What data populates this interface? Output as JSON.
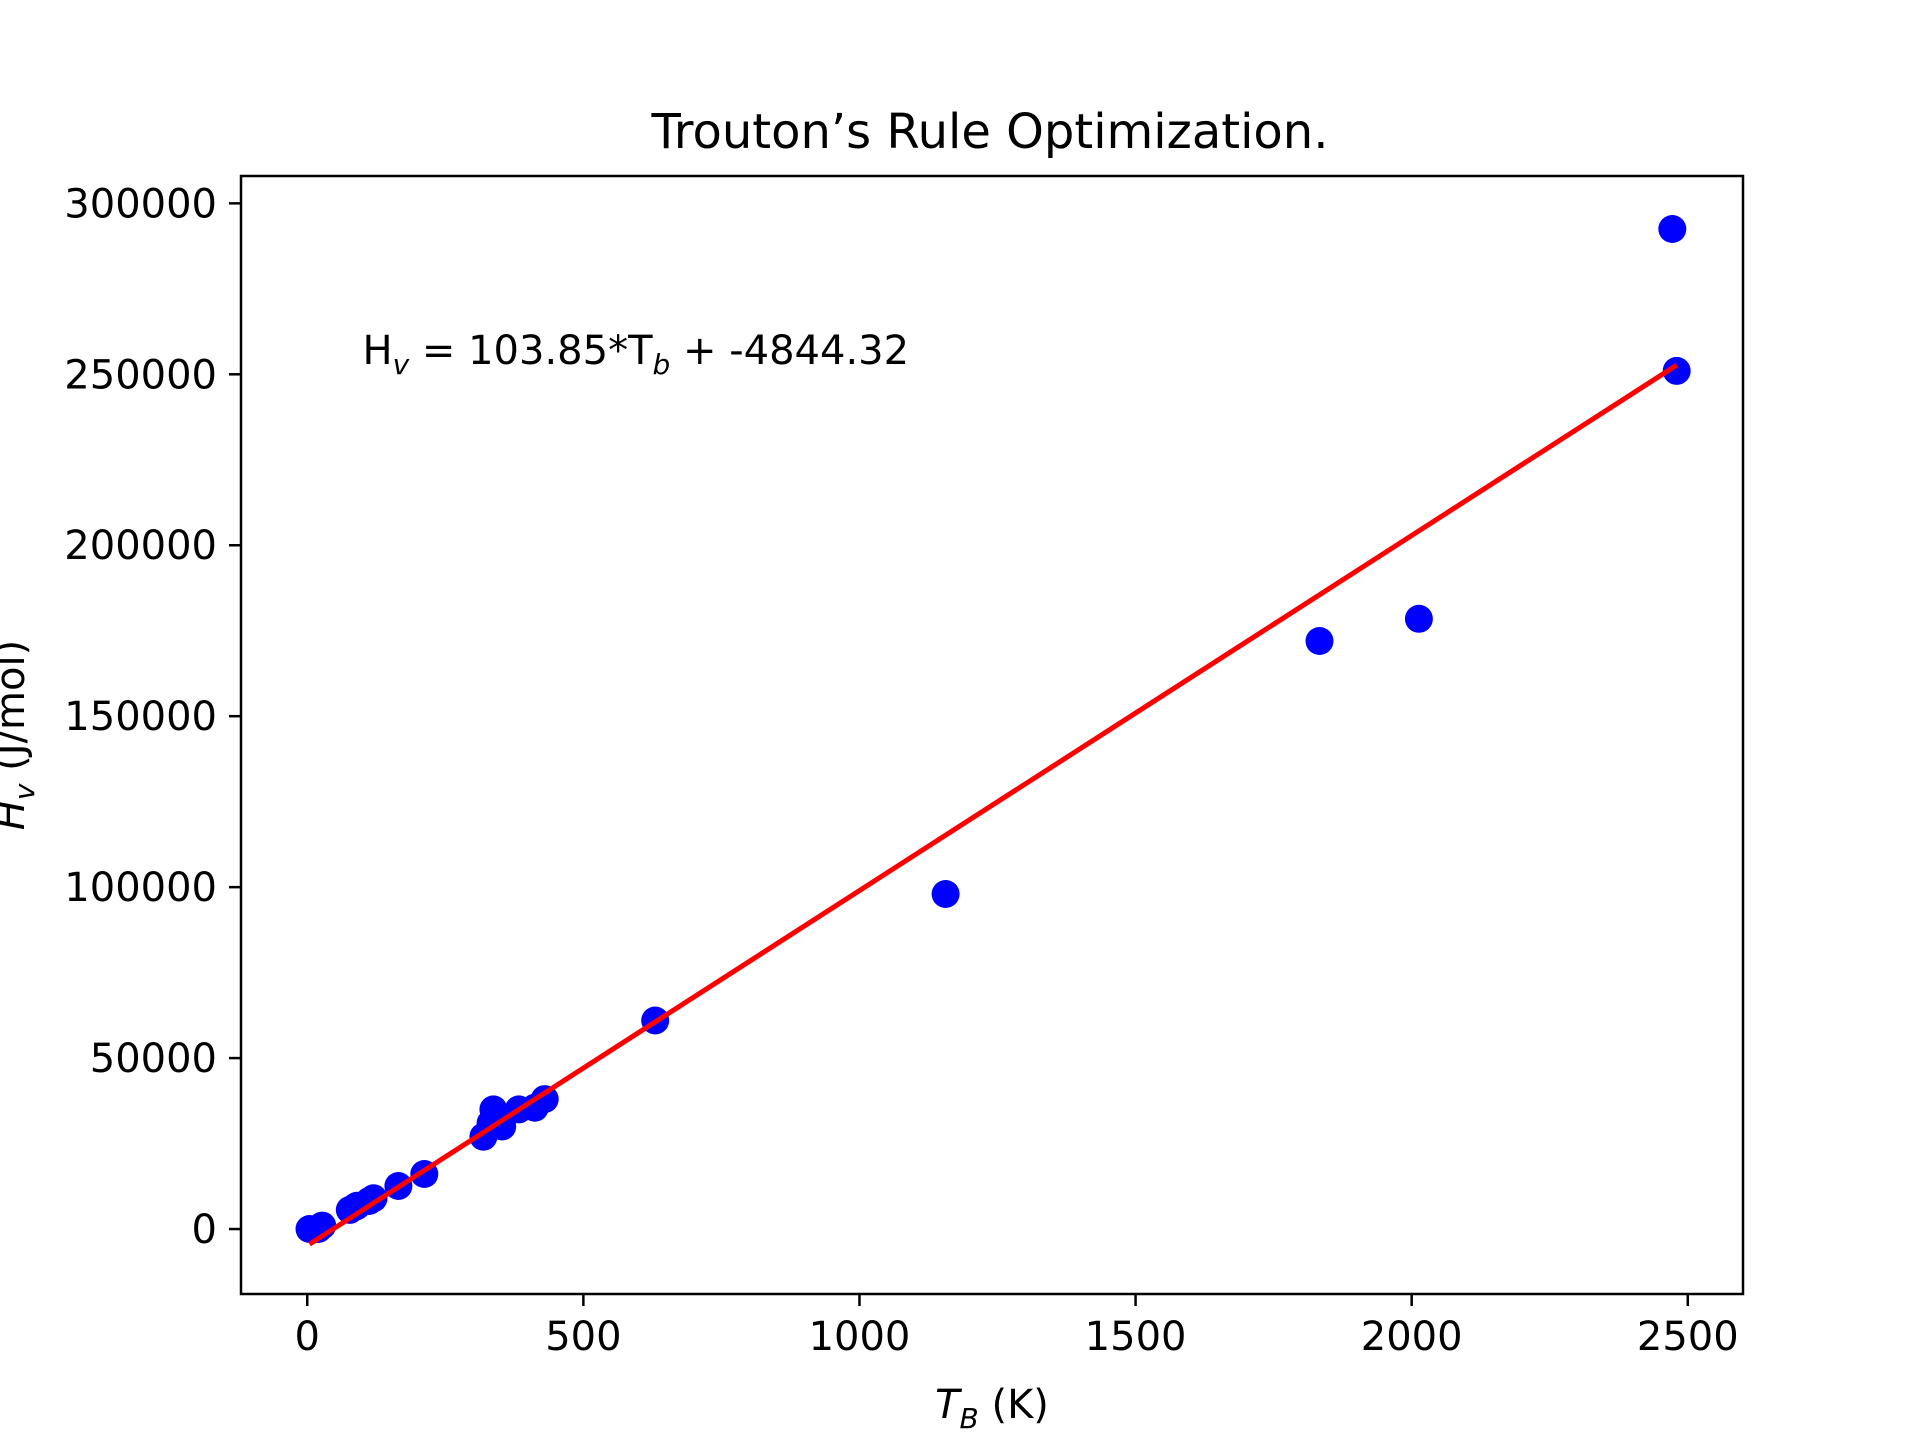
{
  "chart_data": {
    "type": "scatter",
    "title": "Trouton’s Rule Optimization.",
    "xlabel": {
      "main": "T",
      "sub": "B",
      "suffix": " (K)"
    },
    "ylabel": {
      "main": "H",
      "sub": "v",
      "suffix": " (J/mol)"
    },
    "xlim": [
      -120,
      2600
    ],
    "ylim": [
      -19000,
      308000
    ],
    "xticks": [
      0,
      500,
      1000,
      1500,
      2000,
      2500
    ],
    "yticks": [
      0,
      50000,
      100000,
      150000,
      200000,
      250000,
      300000
    ],
    "grid": false,
    "annotation": {
      "parts": [
        {
          "text": "H",
          "sub": false
        },
        {
          "text": "v",
          "sub": true
        },
        {
          "text": " = 103.85*T",
          "sub": false
        },
        {
          "text": "b",
          "sub": true
        },
        {
          "text": " +  -4844.32",
          "sub": false
        }
      ],
      "at": [
        100,
        253000
      ]
    },
    "series": [
      {
        "kind": "points",
        "color": "#0000ff",
        "x": [
          4,
          20,
          27,
          77,
          87,
          90,
          112,
          120,
          165,
          212,
          319,
          332,
          337,
          353,
          383,
          412,
          430,
          630,
          1156,
          1833,
          2013,
          2472,
          2480
        ],
        "y": [
          0,
          0,
          1000,
          5600,
          6500,
          6800,
          8200,
          9000,
          12600,
          16100,
          27000,
          31000,
          35000,
          30000,
          35000,
          35500,
          38000,
          61000,
          98000,
          172000,
          178500,
          292500,
          251000
        ]
      },
      {
        "kind": "fit-line",
        "color": "#ff0000",
        "slope": 103.85,
        "intercept": -4844.32,
        "x_range": [
          4,
          2480
        ]
      }
    ]
  }
}
